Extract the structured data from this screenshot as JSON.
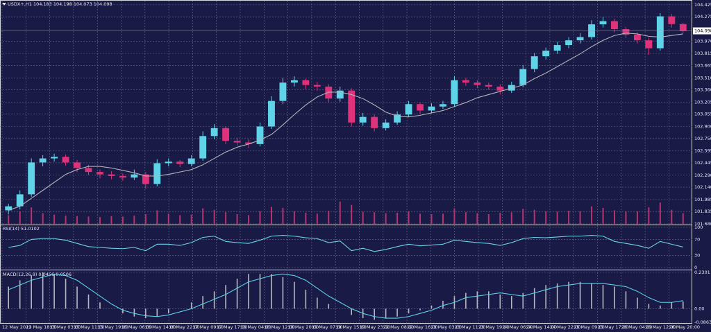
{
  "chart_data": [
    {
      "type": "candlestick",
      "title": "USDX+,H1 104.183 104.198 104.073 104.098",
      "up_color": "#5fd3e8",
      "down_color": "#e0327a",
      "grid": true,
      "ylim": [
        101.68,
        104.45
      ],
      "yticks": [
        104.425,
        104.275,
        {
          "value": 103.97,
          "label": "103.970"
        },
        103.815,
        103.665,
        {
          "value": 103.51,
          "label": "103.510"
        },
        {
          "value": 103.36,
          "label": "103.360"
        },
        103.205,
        103.055,
        {
          "value": 102.9,
          "label": "102.900"
        },
        {
          "value": 102.75,
          "label": "102.750"
        },
        102.595,
        102.445,
        {
          "value": 102.29,
          "label": "102.290"
        },
        {
          "value": 102.14,
          "label": "102.140"
        },
        101.985,
        101.835,
        {
          "value": 101.68,
          "label": "101.680"
        }
      ],
      "last_price": 104.098,
      "ohlc": [
        [
          101.85,
          101.93,
          101.8,
          101.9
        ],
        [
          101.9,
          102.1,
          101.86,
          102.05
        ],
        [
          102.05,
          102.5,
          102.02,
          102.45
        ],
        [
          102.45,
          102.54,
          102.4,
          102.5
        ],
        [
          102.5,
          102.56,
          102.46,
          102.52
        ],
        [
          102.52,
          102.55,
          102.41,
          102.45
        ],
        [
          102.45,
          102.48,
          102.33,
          102.38
        ],
        [
          102.38,
          102.42,
          102.29,
          102.33
        ],
        [
          102.33,
          102.36,
          102.25,
          102.3
        ],
        [
          102.3,
          102.34,
          102.24,
          102.28
        ],
        [
          102.28,
          102.31,
          102.22,
          102.26
        ],
        [
          102.26,
          102.36,
          102.23,
          102.3
        ],
        [
          102.3,
          102.33,
          102.12,
          102.18
        ],
        [
          102.18,
          102.49,
          102.15,
          102.44
        ],
        [
          102.44,
          102.5,
          102.4,
          102.46
        ],
        [
          102.46,
          102.48,
          102.39,
          102.43
        ],
        [
          102.43,
          102.54,
          102.4,
          102.5
        ],
        [
          102.5,
          102.84,
          102.47,
          102.78
        ],
        [
          102.78,
          102.93,
          102.74,
          102.88
        ],
        [
          102.88,
          102.9,
          102.68,
          102.72
        ],
        [
          102.72,
          102.76,
          102.66,
          102.7
        ],
        [
          102.7,
          102.74,
          102.63,
          102.68
        ],
        [
          102.68,
          102.95,
          102.65,
          102.9
        ],
        [
          102.9,
          103.28,
          102.87,
          103.22
        ],
        [
          103.22,
          103.51,
          103.18,
          103.45
        ],
        [
          103.45,
          103.53,
          103.4,
          103.48
        ],
        [
          103.48,
          103.5,
          103.37,
          103.42
        ],
        [
          103.42,
          103.46,
          103.35,
          103.4
        ],
        [
          103.4,
          103.43,
          103.2,
          103.25
        ],
        [
          103.25,
          103.4,
          103.21,
          103.35
        ],
        [
          103.35,
          103.38,
          102.9,
          102.95
        ],
        [
          102.95,
          103.07,
          102.91,
          103.02
        ],
        [
          103.02,
          103.05,
          102.84,
          102.88
        ],
        [
          102.88,
          102.99,
          102.85,
          102.95
        ],
        [
          102.95,
          103.09,
          102.92,
          103.05
        ],
        [
          103.05,
          103.22,
          103.02,
          103.18
        ],
        [
          103.18,
          103.2,
          103.06,
          103.1
        ],
        [
          103.1,
          103.19,
          103.07,
          103.15
        ],
        [
          103.15,
          103.22,
          103.12,
          103.18
        ],
        [
          103.18,
          103.53,
          103.15,
          103.48
        ],
        [
          103.48,
          103.51,
          103.41,
          103.45
        ],
        [
          103.45,
          103.48,
          103.38,
          103.42
        ],
        [
          103.42,
          103.45,
          103.36,
          103.4
        ],
        [
          103.4,
          103.43,
          103.3,
          103.35
        ],
        [
          103.35,
          103.46,
          103.32,
          103.42
        ],
        [
          103.42,
          103.67,
          103.39,
          103.62
        ],
        [
          103.62,
          103.82,
          103.58,
          103.78
        ],
        [
          103.78,
          103.89,
          103.74,
          103.85
        ],
        [
          103.85,
          103.96,
          103.81,
          103.92
        ],
        [
          103.92,
          104.02,
          103.88,
          103.98
        ],
        [
          103.98,
          104.07,
          103.94,
          104.02
        ],
        [
          104.02,
          104.23,
          103.99,
          104.18
        ],
        [
          104.18,
          104.27,
          104.14,
          104.22
        ],
        [
          104.22,
          104.25,
          104.08,
          104.12
        ],
        [
          104.12,
          104.15,
          104.01,
          104.05
        ],
        [
          104.05,
          104.08,
          103.94,
          103.98
        ],
        [
          103.98,
          104.01,
          103.8,
          103.88
        ],
        [
          103.88,
          104.32,
          103.85,
          104.28
        ],
        [
          104.28,
          104.31,
          104.14,
          104.183
        ],
        [
          104.183,
          104.198,
          104.073,
          104.098
        ]
      ],
      "ma": {
        "color": "#b4b4bc",
        "values": [
          101.85,
          101.9,
          102.0,
          102.1,
          102.2,
          102.3,
          102.36,
          102.4,
          102.4,
          102.38,
          102.35,
          102.32,
          102.28,
          102.28,
          102.3,
          102.33,
          102.36,
          102.42,
          102.5,
          102.58,
          102.64,
          102.68,
          102.73,
          102.8,
          102.92,
          103.05,
          103.17,
          103.27,
          103.33,
          103.33,
          103.3,
          103.25,
          103.17,
          103.08,
          103.03,
          103.02,
          103.04,
          103.07,
          103.1,
          103.15,
          103.2,
          103.26,
          103.3,
          103.34,
          103.38,
          103.42,
          103.5,
          103.57,
          103.65,
          103.73,
          103.81,
          103.9,
          103.98,
          104.04,
          104.07,
          104.06,
          104.03,
          104.02,
          104.04,
          104.06
        ]
      },
      "volume": {
        "color": "#b8336f",
        "values": [
          1800,
          2600,
          3400,
          2200,
          1900,
          1700,
          1600,
          1500,
          1400,
          1600,
          1500,
          1700,
          2000,
          2800,
          2100,
          1800,
          1900,
          3200,
          2900,
          2400,
          2000,
          1800,
          2600,
          3500,
          3300,
          2600,
          2300,
          2100,
          2700,
          4600,
          3900,
          2500,
          2400,
          2200,
          2300,
          2500,
          2100,
          2000,
          2100,
          3200,
          2400,
          2200,
          2000,
          2300,
          2400,
          3100,
          2900,
          2600,
          2500,
          2700,
          2600,
          3600,
          3300,
          2800,
          2500,
          2600,
          3400,
          4400,
          2900,
          2200
        ]
      }
    },
    {
      "type": "line",
      "label": "RSI(14) 51.0102",
      "color": "#6dd3e8",
      "grid": true,
      "ylim": [
        0,
        100
      ],
      "yticks": [
        100,
        70,
        30,
        0
      ],
      "values": [
        50,
        55,
        70,
        72,
        72,
        68,
        60,
        52,
        50,
        48,
        47,
        50,
        42,
        58,
        58,
        55,
        62,
        75,
        78,
        65,
        62,
        60,
        68,
        78,
        80,
        78,
        74,
        72,
        62,
        66,
        42,
        48,
        40,
        45,
        52,
        58,
        54,
        56,
        58,
        68,
        65,
        62,
        60,
        55,
        62,
        72,
        75,
        74,
        76,
        78,
        78,
        80,
        78,
        65,
        60,
        55,
        48,
        65,
        58,
        51.0102
      ]
    },
    {
      "type": "macd",
      "label": "MACD(12,26,9) 0.0456 0.0506",
      "color": "#b8b8c4",
      "grid": true,
      "ylim": [
        -0.0863,
        0.2301
      ],
      "yticks": [
        0.2301,
        {
          "value": 0,
          "label": "0.00"
        },
        -0.0863
      ],
      "values": [
        0.14,
        0.18,
        0.21,
        0.23,
        0.22,
        0.19,
        0.14,
        0.09,
        0.04,
        0.0,
        -0.03,
        -0.05,
        -0.06,
        -0.05,
        -0.03,
        0.0,
        0.04,
        0.08,
        0.11,
        0.15,
        0.19,
        0.22,
        0.22,
        0.22,
        0.2,
        0.17,
        0.12,
        0.07,
        0.03,
        0.0,
        -0.04,
        -0.06,
        -0.07,
        -0.06,
        -0.05,
        -0.03,
        -0.01,
        0.02,
        0.05,
        0.08,
        0.1,
        0.11,
        0.11,
        0.09,
        0.08,
        0.1,
        0.13,
        0.15,
        0.16,
        0.17,
        0.17,
        0.16,
        0.15,
        0.14,
        0.11,
        0.07,
        0.03,
        0.02,
        0.04,
        0.0456
      ],
      "signal": {
        "color": "#5fd0e8",
        "values": [
          0.12,
          0.15,
          0.18,
          0.2,
          0.22,
          0.21,
          0.18,
          0.13,
          0.08,
          0.03,
          -0.01,
          -0.03,
          -0.045,
          -0.05,
          -0.04,
          -0.02,
          0.0,
          0.03,
          0.06,
          0.09,
          0.13,
          0.17,
          0.19,
          0.21,
          0.22,
          0.21,
          0.18,
          0.13,
          0.08,
          0.04,
          0.0,
          -0.03,
          -0.05,
          -0.06,
          -0.06,
          -0.05,
          -0.03,
          -0.01,
          0.02,
          0.04,
          0.07,
          0.08,
          0.09,
          0.1,
          0.09,
          0.08,
          0.1,
          0.12,
          0.14,
          0.15,
          0.16,
          0.16,
          0.16,
          0.15,
          0.14,
          0.11,
          0.07,
          0.04,
          0.04,
          0.0506
        ]
      }
    }
  ],
  "time_labels": [
    "12 May 2023",
    "12 May 18:00",
    "15 May 03:00",
    "15 May 11:00",
    "15 May 19:00",
    "16 May 06:00",
    "16 May 14:00",
    "16 May 22:00",
    "17 May 09:00",
    "17 May 17:00",
    "18 May 04:00",
    "18 May 12:00",
    "18 May 20:00",
    "19 May 07:00",
    "19 May 15:00",
    "19 May 23:00",
    "22 May 08:00",
    "22 May 16:00",
    "23 May 03:00",
    "23 May 11:00",
    "23 May 19:00",
    "24 May 06:00",
    "24 May 14:00",
    "24 May 22:00",
    "25 May 09:00",
    "25 May 17:00",
    "26 May 04:00",
    "26 May 12:00",
    "26 May 20:00"
  ]
}
